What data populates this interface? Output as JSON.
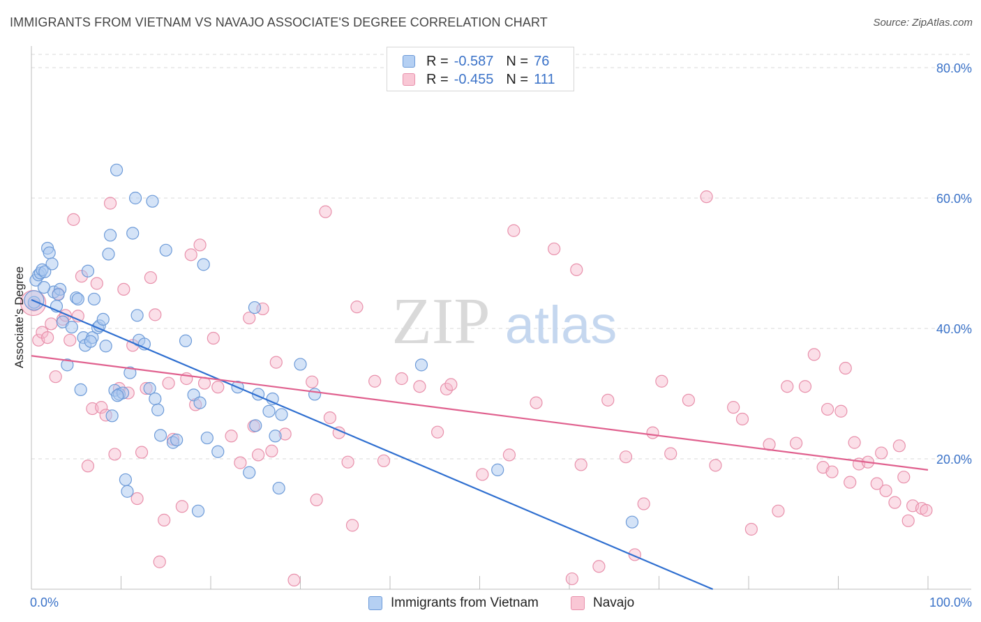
{
  "header": {
    "title": "IMMIGRANTS FROM VIETNAM VS NAVAJO ASSOCIATE'S DEGREE CORRELATION CHART",
    "source": "Source: ZipAtlas.com"
  },
  "watermark": {
    "zip": "ZIP",
    "atlas": "atlas"
  },
  "legend": {
    "rows": [
      {
        "r_label": "R =",
        "r_value": "-0.587",
        "n_label": "N =",
        "n_value": "76"
      },
      {
        "r_label": "R =",
        "r_value": "-0.455",
        "n_label": "N =",
        "n_value": "111"
      }
    ]
  },
  "bottom_legend": {
    "series_1": "Immigrants from Vietnam",
    "series_2": "Navajo"
  },
  "colors": {
    "blue_fill": "#a9c8f0",
    "blue_stroke": "#6c9ad8",
    "blue_line": "#2f6fd0",
    "pink_fill": "#f7b9cb",
    "pink_stroke": "#e890ab",
    "pink_line": "#e0608e",
    "tick_text": "#3a72c8",
    "grid": "#d8d8d8"
  },
  "chart_data": {
    "type": "scatter",
    "title": "IMMIGRANTS FROM VIETNAM VS NAVAJO ASSOCIATE'S DEGREE CORRELATION CHART",
    "xlabel": "",
    "ylabel": "Associate's Degree",
    "xlim": [
      0,
      100
    ],
    "ylim": [
      0,
      80
    ],
    "x_tick_labels": [
      "0.0%",
      "100.0%"
    ],
    "y_ticks": [
      20,
      40,
      60,
      80
    ],
    "y_tick_labels": [
      "20.0%",
      "40.0%",
      "60.0%",
      "80.0%"
    ],
    "grid": true,
    "legend_position": "top-center",
    "series": [
      {
        "name": "Immigrants from Vietnam",
        "color": "#6c9ad8",
        "r": -0.587,
        "n": 76,
        "trend": {
          "x": [
            0,
            76
          ],
          "y": [
            44.4,
            0
          ]
        },
        "points": [
          [
            0.3,
            44.0
          ],
          [
            0.5,
            47.4
          ],
          [
            0.8,
            48.2
          ],
          [
            1.0,
            48.5
          ],
          [
            1.2,
            49.0
          ],
          [
            1.5,
            48.7
          ],
          [
            1.8,
            52.3
          ],
          [
            2.0,
            51.6
          ],
          [
            2.3,
            49.9
          ],
          [
            2.5,
            45.6
          ],
          [
            2.8,
            43.4
          ],
          [
            3.2,
            46.0
          ],
          [
            3.5,
            41.0
          ],
          [
            4.0,
            34.4
          ],
          [
            4.5,
            40.2
          ],
          [
            5.0,
            44.7
          ],
          [
            5.2,
            44.5
          ],
          [
            5.5,
            30.6
          ],
          [
            5.8,
            38.6
          ],
          [
            6.0,
            37.4
          ],
          [
            6.3,
            48.8
          ],
          [
            6.8,
            38.6
          ],
          [
            7.0,
            44.5
          ],
          [
            7.4,
            40.1
          ],
          [
            7.6,
            40.4
          ],
          [
            8.0,
            41.4
          ],
          [
            8.3,
            37.3
          ],
          [
            8.6,
            51.4
          ],
          [
            8.8,
            54.3
          ],
          [
            9.0,
            26.6
          ],
          [
            9.3,
            30.5
          ],
          [
            9.5,
            64.3
          ],
          [
            9.8,
            29.9
          ],
          [
            10.2,
            30.1
          ],
          [
            10.5,
            16.8
          ],
          [
            10.7,
            15.0
          ],
          [
            11.0,
            33.2
          ],
          [
            11.3,
            54.6
          ],
          [
            11.6,
            60.0
          ],
          [
            11.8,
            42.0
          ],
          [
            12.0,
            38.2
          ],
          [
            12.6,
            37.6
          ],
          [
            13.2,
            30.8
          ],
          [
            13.5,
            59.5
          ],
          [
            13.8,
            29.2
          ],
          [
            14.1,
            27.5
          ],
          [
            14.4,
            23.6
          ],
          [
            15.0,
            52.0
          ],
          [
            15.8,
            22.5
          ],
          [
            16.2,
            22.9
          ],
          [
            17.2,
            38.1
          ],
          [
            18.1,
            29.8
          ],
          [
            18.6,
            12.0
          ],
          [
            18.8,
            28.6
          ],
          [
            19.2,
            49.8
          ],
          [
            19.6,
            23.2
          ],
          [
            20.8,
            21.1
          ],
          [
            23.0,
            31.0
          ],
          [
            24.3,
            17.9
          ],
          [
            24.9,
            43.2
          ],
          [
            25.0,
            25.1
          ],
          [
            25.3,
            29.9
          ],
          [
            26.5,
            27.3
          ],
          [
            26.9,
            29.2
          ],
          [
            27.2,
            23.5
          ],
          [
            27.6,
            15.5
          ],
          [
            27.9,
            26.8
          ],
          [
            30.0,
            34.5
          ],
          [
            31.6,
            29.9
          ],
          [
            43.5,
            34.4
          ],
          [
            52.0,
            18.3
          ],
          [
            67.0,
            10.3
          ],
          [
            1.4,
            46.3
          ],
          [
            3.0,
            45.2
          ],
          [
            6.6,
            38.0
          ],
          [
            9.6,
            29.7
          ]
        ]
      },
      {
        "name": "Navajo",
        "color": "#e890ab",
        "r": -0.455,
        "n": 111,
        "trend": {
          "x": [
            0,
            100
          ],
          "y": [
            35.8,
            18.3
          ]
        },
        "points": [
          [
            0.3,
            43.6
          ],
          [
            0.8,
            38.2
          ],
          [
            1.2,
            39.4
          ],
          [
            1.8,
            38.6
          ],
          [
            2.2,
            40.7
          ],
          [
            2.7,
            32.6
          ],
          [
            3.0,
            45.3
          ],
          [
            3.5,
            41.4
          ],
          [
            3.8,
            42.0
          ],
          [
            4.3,
            38.2
          ],
          [
            4.7,
            56.7
          ],
          [
            5.2,
            41.9
          ],
          [
            5.6,
            48.0
          ],
          [
            6.3,
            18.9
          ],
          [
            6.8,
            27.7
          ],
          [
            7.3,
            46.9
          ],
          [
            7.8,
            27.9
          ],
          [
            8.3,
            26.7
          ],
          [
            8.8,
            59.2
          ],
          [
            9.3,
            20.7
          ],
          [
            9.8,
            30.8
          ],
          [
            10.3,
            46.0
          ],
          [
            10.8,
            30.1
          ],
          [
            11.3,
            37.4
          ],
          [
            11.8,
            13.9
          ],
          [
            12.3,
            21.0
          ],
          [
            12.8,
            30.8
          ],
          [
            13.3,
            47.8
          ],
          [
            13.8,
            42.1
          ],
          [
            14.3,
            4.2
          ],
          [
            14.8,
            10.6
          ],
          [
            15.3,
            31.6
          ],
          [
            15.8,
            23.0
          ],
          [
            16.8,
            12.7
          ],
          [
            17.3,
            32.3
          ],
          [
            17.8,
            51.3
          ],
          [
            18.3,
            28.3
          ],
          [
            18.8,
            52.8
          ],
          [
            19.3,
            31.6
          ],
          [
            20.3,
            38.5
          ],
          [
            20.8,
            31.0
          ],
          [
            22.3,
            23.5
          ],
          [
            23.3,
            19.4
          ],
          [
            24.3,
            41.6
          ],
          [
            24.8,
            25.0
          ],
          [
            25.3,
            20.6
          ],
          [
            25.8,
            43.0
          ],
          [
            26.8,
            21.2
          ],
          [
            27.3,
            34.8
          ],
          [
            28.3,
            23.8
          ],
          [
            29.3,
            1.4
          ],
          [
            31.3,
            31.8
          ],
          [
            31.8,
            13.7
          ],
          [
            32.8,
            57.9
          ],
          [
            33.3,
            26.3
          ],
          [
            34.3,
            24.0
          ],
          [
            35.3,
            19.5
          ],
          [
            35.8,
            9.8
          ],
          [
            36.3,
            43.3
          ],
          [
            38.3,
            31.9
          ],
          [
            39.3,
            19.7
          ],
          [
            41.3,
            32.3
          ],
          [
            43.3,
            31.1
          ],
          [
            45.3,
            24.1
          ],
          [
            46.3,
            30.7
          ],
          [
            46.8,
            31.4
          ],
          [
            50.3,
            17.6
          ],
          [
            53.3,
            20.6
          ],
          [
            53.8,
            55.0
          ],
          [
            56.3,
            28.6
          ],
          [
            58.3,
            52.2
          ],
          [
            60.3,
            1.6
          ],
          [
            60.8,
            49.0
          ],
          [
            61.3,
            19.1
          ],
          [
            63.3,
            3.5
          ],
          [
            64.3,
            29.0
          ],
          [
            66.3,
            20.3
          ],
          [
            67.3,
            5.3
          ],
          [
            68.3,
            13.1
          ],
          [
            69.3,
            24.0
          ],
          [
            70.3,
            31.9
          ],
          [
            71.3,
            20.8
          ],
          [
            73.3,
            29.0
          ],
          [
            75.3,
            60.2
          ],
          [
            76.3,
            19.0
          ],
          [
            78.3,
            27.9
          ],
          [
            79.3,
            26.1
          ],
          [
            80.3,
            9.2
          ],
          [
            82.3,
            22.2
          ],
          [
            83.3,
            12.0
          ],
          [
            84.3,
            31.1
          ],
          [
            85.3,
            22.4
          ],
          [
            86.3,
            31.1
          ],
          [
            87.3,
            36.0
          ],
          [
            88.3,
            18.7
          ],
          [
            89.3,
            18.0
          ],
          [
            90.3,
            27.3
          ],
          [
            90.8,
            33.9
          ],
          [
            91.3,
            16.4
          ],
          [
            91.8,
            22.5
          ],
          [
            92.3,
            19.2
          ],
          [
            93.3,
            19.5
          ],
          [
            94.3,
            16.2
          ],
          [
            95.3,
            15.1
          ],
          [
            96.3,
            13.3
          ],
          [
            97.3,
            17.2
          ],
          [
            97.8,
            10.5
          ],
          [
            98.3,
            12.8
          ],
          [
            99.3,
            12.4
          ],
          [
            99.8,
            12.1
          ],
          [
            94.8,
            20.9
          ],
          [
            96.8,
            22.0
          ],
          [
            88.8,
            27.6
          ]
        ]
      }
    ]
  }
}
